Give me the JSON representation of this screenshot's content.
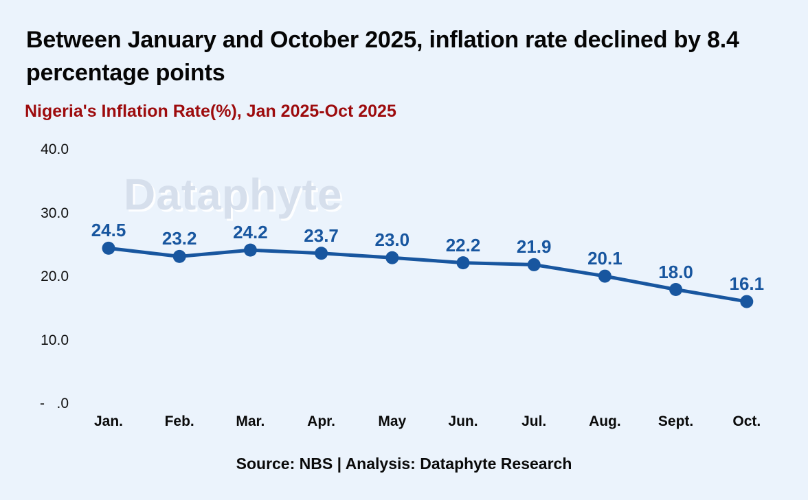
{
  "header": {
    "title": "Between January and October 2025, inflation rate declined by 8.4 percentage points"
  },
  "watermark": {
    "text": "Dataphyte"
  },
  "footer": {
    "source_note": "Source: NBS | Analysis: Dataphyte Research"
  },
  "colors": {
    "background": "#ebf3fc",
    "line": "#18569f",
    "marker": "#18569f",
    "data_label": "#18569f",
    "subtitle": "#9d0b0d",
    "title_text": "#050505",
    "axis_text": "#111111",
    "watermark": "#d6dfec"
  },
  "chart_data": {
    "type": "line",
    "title": "Nigeria's Inflation Rate(%), Jan 2025-Oct 2025",
    "categories": [
      "Jan.",
      "Feb.",
      "Mar.",
      "Apr.",
      "May",
      "Jun.",
      "Jul.",
      "Aug.",
      "Sept.",
      "Oct."
    ],
    "series": [
      {
        "name": "Nigeria's Inflation Rate (%)",
        "values": [
          24.5,
          23.2,
          24.2,
          23.7,
          23.0,
          22.2,
          21.9,
          20.1,
          18.0,
          16.1
        ]
      }
    ],
    "data_labels": [
      "24.5",
      "23.2",
      "24.2",
      "23.7",
      "23.0",
      "22.2",
      "21.9",
      "20.1",
      "18.0",
      "16.1"
    ],
    "y_ticks": [
      {
        "value": 40,
        "label": "40.0"
      },
      {
        "value": 30,
        "label": "30.0"
      },
      {
        "value": 20,
        "label": "20.0"
      },
      {
        "value": 10,
        "label": "10.0"
      },
      {
        "value": 0,
        "label": "-   .0"
      }
    ],
    "ylim": [
      0,
      40
    ],
    "xlabel": "",
    "ylabel": "",
    "grid": false,
    "legend": "none"
  }
}
